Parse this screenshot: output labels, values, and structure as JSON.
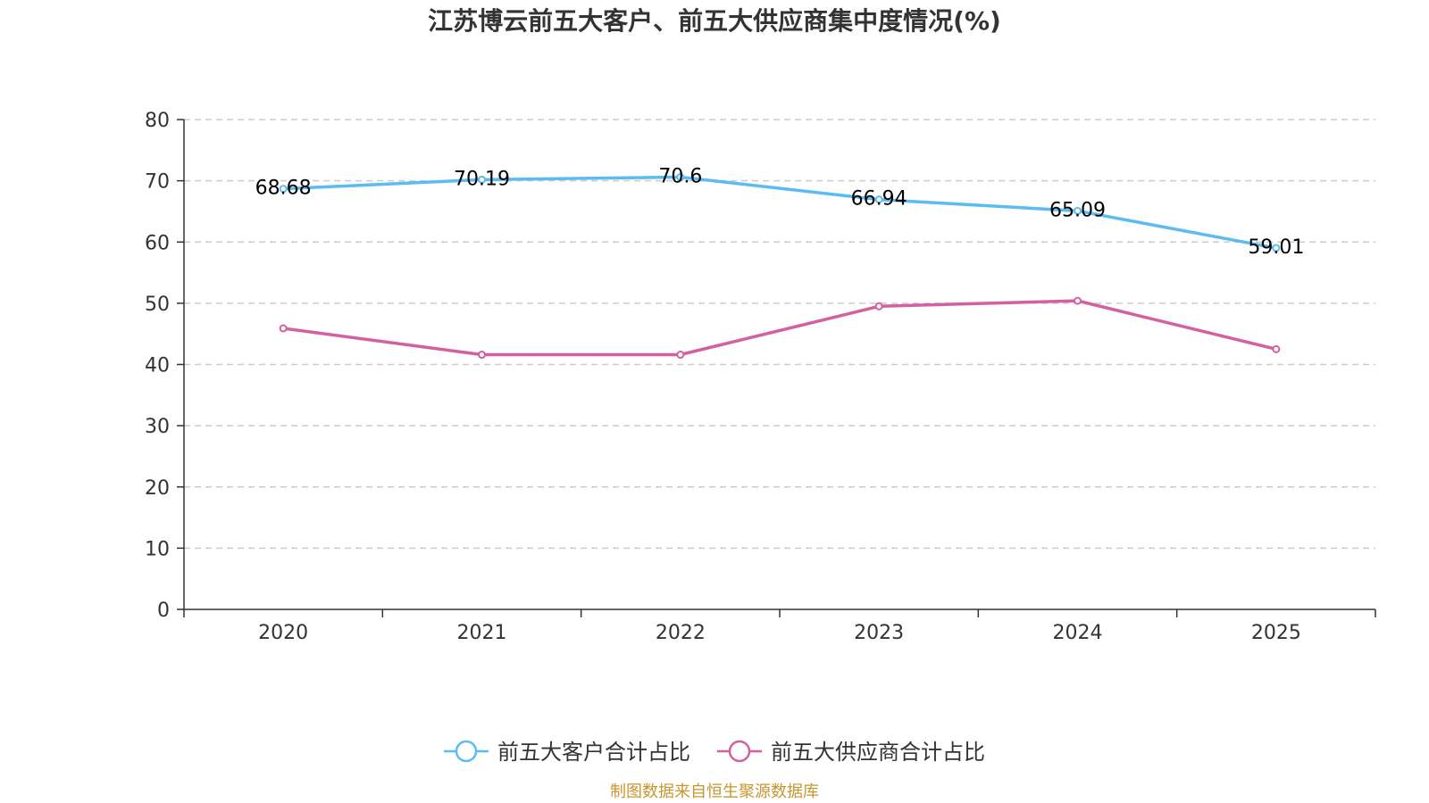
{
  "chart_data": {
    "type": "line",
    "title": "江苏博云前五大客户、前五大供应商集中度情况(%)",
    "categories": [
      "2020",
      "2021",
      "2022",
      "2023",
      "2024",
      "2025"
    ],
    "ylim": [
      0,
      80
    ],
    "yticks": [
      "0",
      "10",
      "20",
      "30",
      "40",
      "50",
      "60",
      "70",
      "80"
    ],
    "grid": true,
    "legend_position": "bottom-center",
    "series": [
      {
        "name": "前五大客户合计占比",
        "color": "#5bbcf2",
        "values": [
          68.68,
          70.19,
          70.6,
          66.94,
          65.09,
          59.01
        ],
        "labels": [
          "68.68",
          "70.19",
          "70.6",
          "66.94",
          "65.09",
          "59.01"
        ],
        "show_labels": true
      },
      {
        "name": "前五大供应商合计占比",
        "color": "#d4609f",
        "values": [
          45.9,
          41.6,
          41.6,
          49.5,
          50.4,
          42.5
        ],
        "show_labels": false
      }
    ]
  },
  "source": "制图数据来自恒生聚源数据库"
}
